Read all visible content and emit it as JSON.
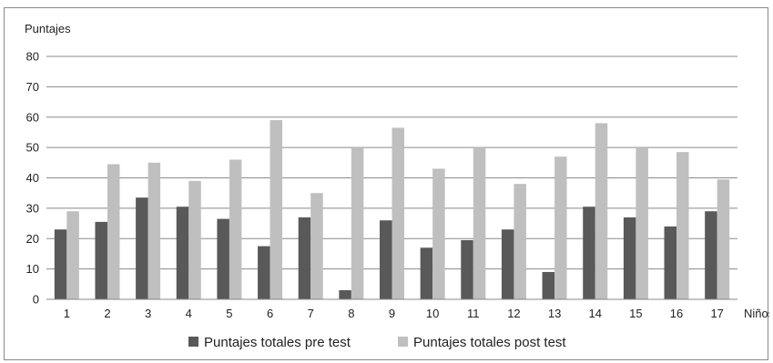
{
  "chart_data": {
    "type": "bar",
    "ylabel": "Puntajes",
    "xlabel": "Niños",
    "ylim": [
      0,
      80
    ],
    "yticks": [
      0,
      10,
      20,
      30,
      40,
      50,
      60,
      70,
      80
    ],
    "grid": true,
    "legend_position": "bottom",
    "categories": [
      "1",
      "2",
      "3",
      "4",
      "5",
      "6",
      "7",
      "8",
      "9",
      "10",
      "11",
      "12",
      "13",
      "14",
      "15",
      "16",
      "17"
    ],
    "series": [
      {
        "name": "Puntajes totales pre test",
        "color": "#595959",
        "values": [
          23,
          25.5,
          33.5,
          30.5,
          26.5,
          17.5,
          27,
          3,
          26,
          17,
          19.5,
          23,
          9,
          30.5,
          27,
          24,
          29
        ]
      },
      {
        "name": "Puntajes totales post test",
        "color": "#bfbfbf",
        "values": [
          29,
          44.5,
          45,
          39,
          46,
          59,
          35,
          50,
          56.5,
          43,
          50,
          38,
          47,
          58,
          50,
          48.5,
          39.5
        ]
      }
    ]
  }
}
